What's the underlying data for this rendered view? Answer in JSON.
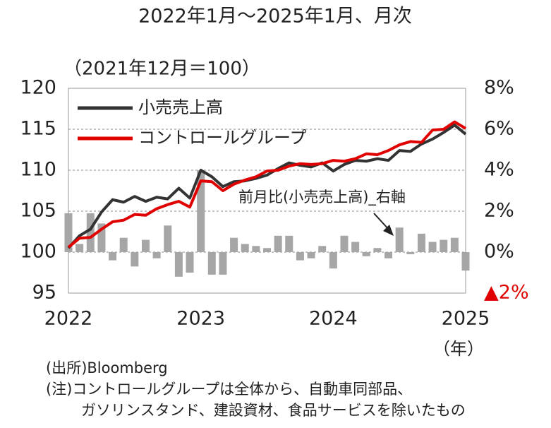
{
  "chart_data": {
    "type": "line",
    "title": "2022年1月～2025年1月、月次",
    "subtitle": "（2021年12月＝100）",
    "x_unit": "（年）",
    "annotation": "前月比(小売売上高)_右軸",
    "notes": [
      "(出所)Bloomberg",
      "(注)コントロールグループは全体から、自動車同部品、",
      "ガソリンスタンド、建設資材、食品サービスを除いたもの"
    ],
    "categories": [
      "2022",
      null,
      null,
      null,
      null,
      null,
      null,
      null,
      null,
      null,
      null,
      null,
      "2023",
      null,
      null,
      null,
      null,
      null,
      null,
      null,
      null,
      null,
      null,
      null,
      "2024",
      null,
      null,
      null,
      null,
      null,
      null,
      null,
      null,
      null,
      null,
      null,
      "2025"
    ],
    "series": [
      {
        "name": "小売売上高",
        "type": "line",
        "color": "#333333",
        "values": [
          100.5,
          102.0,
          102.8,
          104.9,
          106.4,
          106.1,
          106.8,
          106.2,
          106.7,
          106.5,
          107.8,
          106.6,
          110.0,
          109.2,
          108.0,
          108.6,
          108.7,
          109.0,
          109.4,
          110.2,
          110.9,
          110.6,
          110.4,
          110.9,
          109.9,
          110.7,
          111.2,
          111.1,
          111.4,
          111.2,
          112.4,
          112.3,
          113.2,
          113.8,
          114.6,
          115.5,
          114.4
        ]
      },
      {
        "name": "コントロールグループ",
        "type": "line",
        "color": "#e00000",
        "values": [
          100.6,
          101.7,
          101.8,
          102.8,
          103.7,
          103.9,
          104.6,
          104.5,
          105.3,
          105.8,
          106.2,
          105.5,
          108.7,
          108.6,
          107.5,
          108.3,
          108.8,
          109.2,
          109.9,
          110.0,
          110.5,
          110.8,
          110.7,
          110.8,
          111.2,
          111.1,
          111.4,
          112.0,
          111.9,
          112.4,
          113.1,
          113.5,
          113.4,
          114.9,
          115.0,
          115.9,
          115.1
        ]
      },
      {
        "type": "bar",
        "axis": "y2",
        "color": "#a6a6a6",
        "values": [
          1.9,
          0.4,
          1.9,
          1.4,
          -0.4,
          0.7,
          -0.7,
          0.6,
          -0.3,
          1.3,
          -1.2,
          -1.0,
          4.0,
          -1.1,
          -1.1,
          0.7,
          0.4,
          0.3,
          0.2,
          0.8,
          0.8,
          -0.4,
          -0.3,
          0.3,
          -0.8,
          0.8,
          0.5,
          -0.2,
          0.2,
          -0.3,
          1.2,
          -0.1,
          0.9,
          0.5,
          0.6,
          0.7,
          -0.9
        ]
      }
    ],
    "ylim": [
      95,
      120
    ],
    "yticks": [
      95,
      100,
      105,
      110,
      115,
      120
    ],
    "y2lim": [
      -2,
      8
    ],
    "y2ticks": [
      {
        "value": -2,
        "label": "▲2%"
      },
      {
        "value": 0,
        "label": "0%"
      },
      {
        "value": 2,
        "label": "2%"
      },
      {
        "value": 4,
        "label": "4%"
      },
      {
        "value": 6,
        "label": "6%"
      },
      {
        "value": 8,
        "label": "8%"
      }
    ],
    "negative_label_color": "#e00000",
    "grid": true
  }
}
